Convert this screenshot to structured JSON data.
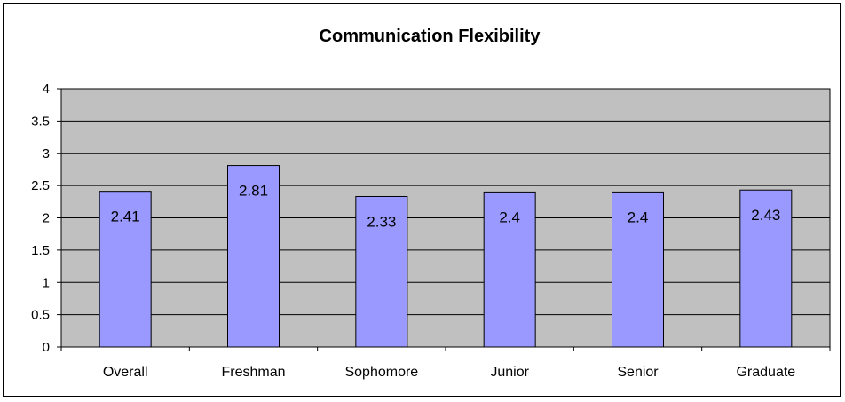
{
  "chart_data": {
    "type": "bar",
    "title": "Communication Flexibility",
    "xlabel": "",
    "ylabel": "",
    "categories": [
      "Overall",
      "Freshman",
      "Sophomore",
      "Junior",
      "Senior",
      "Graduate"
    ],
    "values": [
      2.41,
      2.81,
      2.33,
      2.4,
      2.4,
      2.43
    ],
    "data_labels": [
      "2.41",
      "2.81",
      "2.33",
      "2.4",
      "2.4",
      "2.43"
    ],
    "ylim": [
      0,
      4
    ],
    "yticks": [
      "0",
      "0.5",
      "1",
      "1.5",
      "2",
      "2.5",
      "3",
      "3.5",
      "4"
    ],
    "grid": true,
    "legend": "none",
    "colors": {
      "bar_fill": "#9999ff",
      "plot_background": "#c0c0c0",
      "gridline": "#000000",
      "axis": "#000000"
    }
  }
}
